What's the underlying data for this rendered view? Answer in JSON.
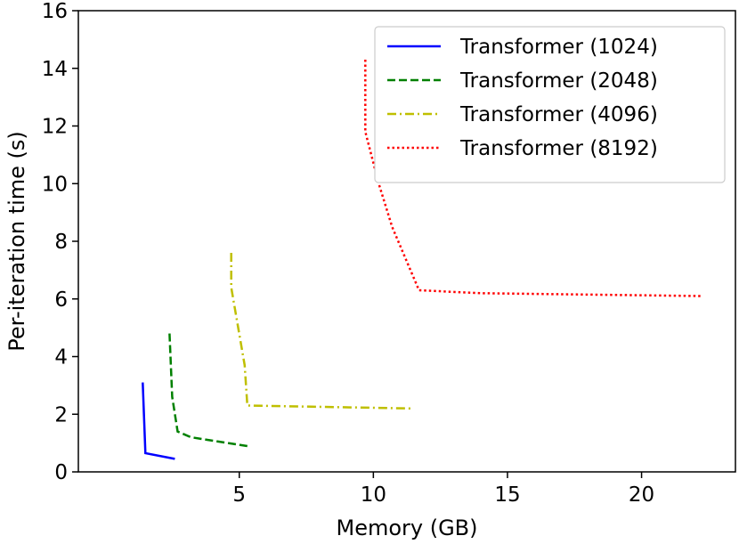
{
  "chart_data": {
    "type": "line",
    "title": "",
    "xlabel": "Memory (GB)",
    "ylabel": "Per-iteration time (s)",
    "xlim": [
      -1,
      23.5
    ],
    "ylim": [
      0,
      16
    ],
    "xticks": [
      5,
      10,
      15,
      20
    ],
    "yticks": [
      0,
      2,
      4,
      6,
      8,
      10,
      12,
      14,
      16
    ],
    "grid": false,
    "legend_position": "top-right",
    "series": [
      {
        "name": "Transformer (1024)",
        "color": "#0000ff",
        "dash": "solid",
        "x": [
          1.4,
          1.5,
          2.6
        ],
        "y": [
          3.1,
          0.65,
          0.45
        ]
      },
      {
        "name": "Transformer (2048)",
        "color": "#008000",
        "dash": "dashed",
        "x": [
          2.4,
          2.5,
          2.7,
          3.2,
          5.4
        ],
        "y": [
          4.8,
          2.6,
          1.4,
          1.2,
          0.88
        ]
      },
      {
        "name": "Transformer (4096)",
        "color": "#bfbf00",
        "dash": "dashdot",
        "x": [
          4.7,
          4.7,
          5.2,
          5.3,
          11.5
        ],
        "y": [
          7.6,
          6.4,
          3.7,
          2.3,
          2.2
        ]
      },
      {
        "name": "Transformer (8192)",
        "color": "#ff0000",
        "dash": "dotted",
        "x": [
          9.7,
          9.7,
          10.2,
          10.7,
          11.7,
          14.0,
          22.2
        ],
        "y": [
          14.3,
          11.8,
          10.0,
          8.5,
          6.3,
          6.2,
          6.1
        ]
      }
    ]
  }
}
